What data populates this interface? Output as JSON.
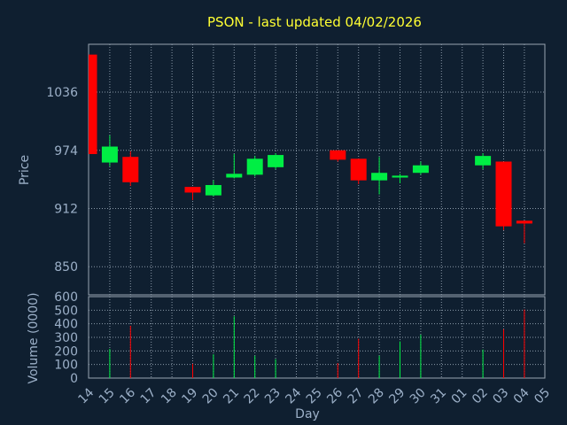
{
  "chart_data": {
    "type": "candlestick",
    "title": "PSON - last updated 04/02/2026",
    "price_axis": {
      "label": "Price",
      "ticks": [
        1036,
        974,
        912,
        850
      ],
      "ylim": [
        820,
        1087
      ]
    },
    "volume_axis": {
      "label": "Volume (0000)",
      "ticks": [
        600,
        500,
        400,
        300,
        200,
        100,
        0
      ],
      "ylim": [
        0,
        600
      ]
    },
    "x_axis": {
      "label": "Day",
      "ticks": [
        "14",
        "15",
        "16",
        "17",
        "18",
        "19",
        "20",
        "21",
        "22",
        "23",
        "24",
        "25",
        "26",
        "27",
        "28",
        "29",
        "30",
        "31",
        "01",
        "02",
        "03",
        "04",
        "05"
      ]
    },
    "grid": true,
    "colors": {
      "up": "#00ee44",
      "down": "#ff0000",
      "background": "#0f1f30",
      "title": "#ffff33",
      "text": "#9cb0c8"
    },
    "candles": [
      {
        "day": "14",
        "open": 1076,
        "high": 1076,
        "low": 970,
        "close": 970,
        "volume": 0
      },
      {
        "day": "15",
        "open": 961,
        "high": 990,
        "low": 957,
        "close": 978,
        "volume": 215
      },
      {
        "day": "16",
        "open": 967,
        "high": 973,
        "low": 936,
        "close": 940,
        "volume": 385
      },
      {
        "day": "19",
        "open": 935,
        "high": 935,
        "low": 921,
        "close": 929,
        "volume": 105
      },
      {
        "day": "20",
        "open": 926,
        "high": 942,
        "low": 925,
        "close": 937,
        "volume": 175
      },
      {
        "day": "21",
        "open": 945,
        "high": 970,
        "low": 944,
        "close": 949,
        "volume": 455
      },
      {
        "day": "22",
        "open": 948,
        "high": 968,
        "low": 946,
        "close": 965,
        "volume": 165
      },
      {
        "day": "23",
        "open": 956,
        "high": 971,
        "low": 954,
        "close": 969,
        "volume": 140
      },
      {
        "day": "26",
        "open": 974,
        "high": 974,
        "low": 962,
        "close": 964,
        "volume": 110
      },
      {
        "day": "27",
        "open": 965,
        "high": 965,
        "low": 938,
        "close": 942,
        "volume": 290
      },
      {
        "day": "28",
        "open": 942,
        "high": 967,
        "low": 927,
        "close": 950,
        "volume": 165
      },
      {
        "day": "29",
        "open": 945,
        "high": 949,
        "low": 939,
        "close": 947,
        "volume": 270
      },
      {
        "day": "30",
        "open": 950,
        "high": 962,
        "low": 948,
        "close": 958,
        "volume": 320
      },
      {
        "day": "02",
        "open": 958,
        "high": 971,
        "low": 954,
        "close": 968,
        "volume": 210
      },
      {
        "day": "03",
        "open": 962,
        "high": 962,
        "low": 889,
        "close": 893,
        "volume": 360
      },
      {
        "day": "04",
        "open": 899,
        "high": 899,
        "low": 875,
        "close": 896,
        "volume": 505
      }
    ]
  }
}
